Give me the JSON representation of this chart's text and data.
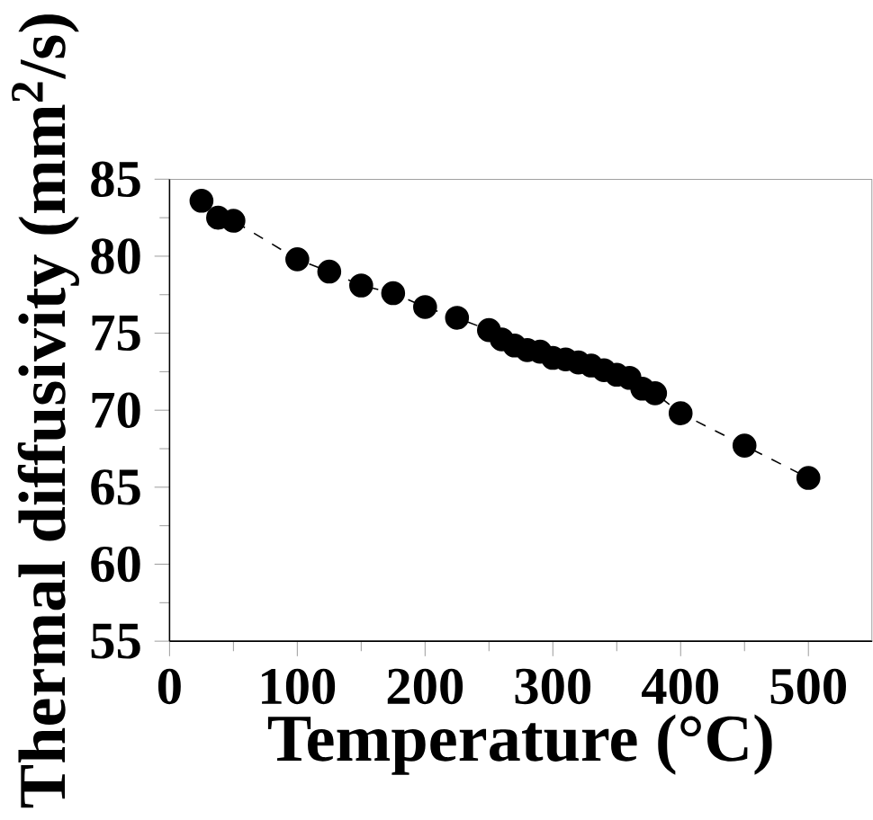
{
  "chart_data": {
    "type": "line",
    "xlabel": "Temperature (°C)",
    "ylabel": "Thermal diffusivity (mm$^{2}$/s)",
    "x": [
      25,
      38,
      50,
      100,
      125,
      150,
      175,
      200,
      225,
      250,
      260,
      270,
      280,
      290,
      300,
      310,
      320,
      330,
      340,
      350,
      360,
      370,
      380,
      400,
      450,
      500
    ],
    "values": [
      83.6,
      82.5,
      82.3,
      79.8,
      79.0,
      78.1,
      77.6,
      76.7,
      76.0,
      75.2,
      74.6,
      74.2,
      73.9,
      73.8,
      73.4,
      73.3,
      73.1,
      72.9,
      72.6,
      72.3,
      72.1,
      71.4,
      71.1,
      69.8,
      67.7,
      65.6
    ],
    "color": "#000000",
    "marker": "circle",
    "line_style": "dashed",
    "xlim": [
      0,
      550
    ],
    "ylim": [
      55,
      85
    ],
    "xticks": [
      0,
      100,
      200,
      300,
      400,
      500
    ],
    "yticks": [
      55,
      60,
      65,
      70,
      75,
      80,
      85
    ]
  }
}
